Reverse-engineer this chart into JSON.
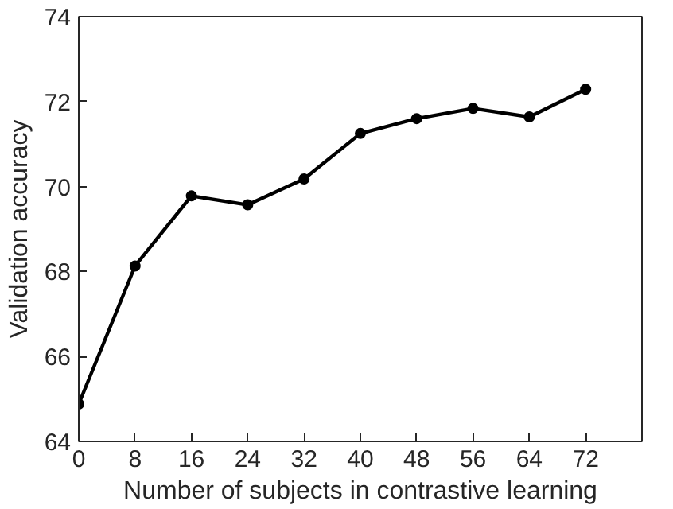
{
  "chart_data": {
    "type": "line",
    "xlabel": "Number of subjects in contrastive learning",
    "ylabel": "Validation accuracy",
    "x": [
      0,
      8,
      16,
      24,
      32,
      40,
      48,
      56,
      64,
      72
    ],
    "series": [
      {
        "color": "#000000",
        "values": [
          64.88,
          68.13,
          69.78,
          69.57,
          70.18,
          71.25,
          71.6,
          71.84,
          71.64,
          72.29
        ]
      }
    ],
    "xlim": [
      0,
      80
    ],
    "xticks": [
      0,
      8,
      16,
      24,
      32,
      40,
      48,
      56,
      64,
      72
    ],
    "ylim": [
      64,
      74
    ],
    "yticks": [
      64,
      66,
      68,
      70,
      72,
      74
    ],
    "grid": false,
    "marker": "circle",
    "line_style": "solid"
  }
}
